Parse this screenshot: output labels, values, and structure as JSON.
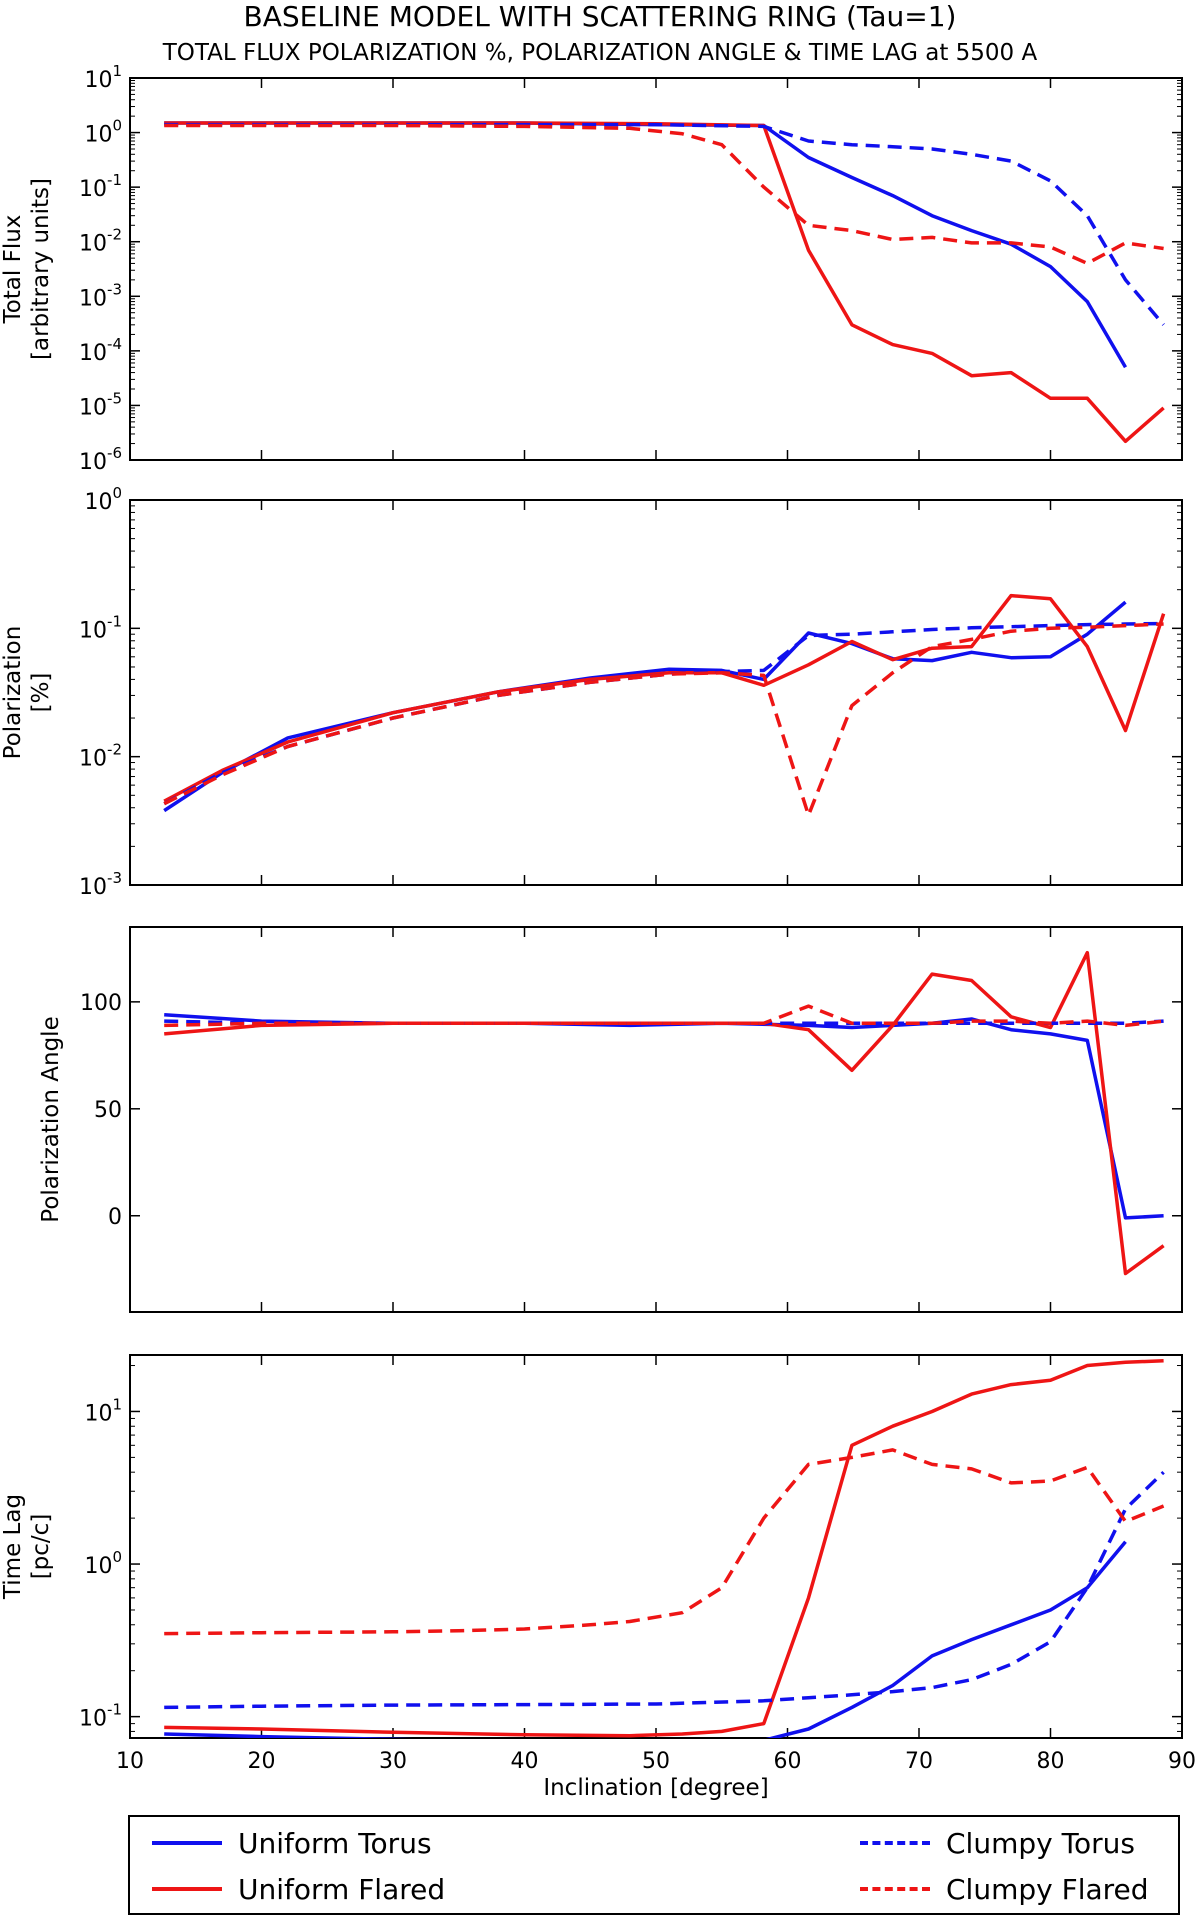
{
  "title": "BASELINE MODEL WITH SCATTERING RING (Tau=1)",
  "subtitle": "TOTAL FLUX POLARIZATION %, POLARIZATION ANGLE & TIME LAG at 5500 A",
  "colors": {
    "uniform_torus": "#1010ee",
    "uniform_flared": "#ee1515",
    "clumpy_torus": "#1010ee",
    "clumpy_flared": "#ee1515"
  },
  "legend": {
    "uniform_torus": "Uniform Torus",
    "uniform_flared": "Uniform Flared",
    "clumpy_torus": "Clumpy Torus",
    "clumpy_flared": "Clumpy Flared"
  },
  "chart_data": [
    {
      "type": "line",
      "scale": "log",
      "ylabel": [
        "Total Flux",
        "[arbitrary units]"
      ],
      "xlim": [
        10,
        90
      ],
      "ylim_exp": [
        -6,
        1
      ],
      "yticks": [
        {
          "base": "10",
          "exp": "-6"
        },
        {
          "base": "10",
          "exp": "-5"
        },
        {
          "base": "10",
          "exp": "-4"
        },
        {
          "base": "10",
          "exp": "-3"
        },
        {
          "base": "10",
          "exp": "-2"
        },
        {
          "base": "10",
          "exp": "-1"
        },
        {
          "base": "10",
          "exp": "0"
        },
        {
          "base": "10",
          "exp": "1"
        }
      ],
      "series": [
        {
          "name": "Uniform Torus",
          "style": "solid",
          "color": "#1010ee",
          "x": [
            12.6,
            20,
            30,
            40,
            50,
            58.2,
            61.6,
            64.9,
            68,
            71,
            74,
            77,
            80,
            82.8,
            85.7
          ],
          "y": [
            1.5,
            1.5,
            1.5,
            1.5,
            1.4,
            1.35,
            0.35,
            0.15,
            0.07,
            0.03,
            0.016,
            0.009,
            0.0035,
            0.0008,
            5e-05
          ]
        },
        {
          "name": "Uniform Flared",
          "style": "solid",
          "color": "#ee1515",
          "x": [
            12.6,
            20,
            30,
            40,
            50,
            58.2,
            61.6,
            64.9,
            68,
            71,
            74,
            77,
            80,
            82.8,
            85.7,
            88.6
          ],
          "y": [
            1.5,
            1.5,
            1.5,
            1.5,
            1.45,
            1.35,
            0.007,
            0.0003,
            0.00013,
            9e-05,
            3.5e-05,
            4e-05,
            1.35e-05,
            1.35e-05,
            2.2e-06,
            9e-06
          ]
        },
        {
          "name": "Clumpy Torus",
          "style": "dashed",
          "color": "#1010ee",
          "x": [
            12.6,
            20,
            30,
            40,
            50,
            58.2,
            61.6,
            64.9,
            68,
            71,
            74,
            77,
            80,
            82.8,
            85.7,
            88.6
          ],
          "y": [
            1.4,
            1.4,
            1.4,
            1.4,
            1.4,
            1.3,
            0.7,
            0.6,
            0.55,
            0.5,
            0.4,
            0.3,
            0.13,
            0.03,
            0.002,
            0.0003
          ]
        },
        {
          "name": "Clumpy Flared",
          "style": "dashed",
          "color": "#ee1515",
          "x": [
            12.6,
            20,
            30,
            40,
            48,
            52,
            55,
            58.2,
            61.6,
            64.9,
            68,
            71,
            74,
            77,
            80,
            82.8,
            85.7,
            88.6
          ],
          "y": [
            1.35,
            1.35,
            1.35,
            1.3,
            1.2,
            0.95,
            0.6,
            0.1,
            0.02,
            0.016,
            0.011,
            0.012,
            0.0095,
            0.0095,
            0.008,
            0.004,
            0.0095,
            0.0075
          ]
        }
      ]
    },
    {
      "type": "line",
      "scale": "log",
      "ylabel": [
        "Polarization",
        "[%]"
      ],
      "xlim": [
        10,
        90
      ],
      "ylim_exp": [
        -3,
        0
      ],
      "yticks": [
        {
          "base": "10",
          "exp": "-3"
        },
        {
          "base": "10",
          "exp": "-2"
        },
        {
          "base": "10",
          "exp": "-1"
        },
        {
          "base": "10",
          "exp": "0"
        }
      ],
      "series": [
        {
          "name": "Uniform Torus",
          "style": "solid",
          "color": "#1010ee",
          "x": [
            12.6,
            17,
            22,
            30,
            38,
            45,
            51,
            55,
            58.2,
            61.6,
            64.9,
            68,
            71,
            74,
            77,
            80,
            82.8,
            85.7
          ],
          "y": [
            0.0038,
            0.0075,
            0.014,
            0.022,
            0.032,
            0.041,
            0.048,
            0.047,
            0.04,
            0.092,
            0.076,
            0.058,
            0.056,
            0.065,
            0.059,
            0.06,
            0.09,
            0.16
          ]
        },
        {
          "name": "Uniform Flared",
          "style": "solid",
          "color": "#ee1515",
          "x": [
            12.6,
            17,
            22,
            30,
            38,
            45,
            51,
            55,
            58.2,
            61.6,
            64.9,
            68,
            71,
            74,
            77,
            80,
            82.8,
            85.7,
            88.6
          ],
          "y": [
            0.0045,
            0.0078,
            0.013,
            0.022,
            0.032,
            0.04,
            0.045,
            0.045,
            0.036,
            0.052,
            0.079,
            0.057,
            0.07,
            0.072,
            0.18,
            0.17,
            0.072,
            0.016,
            0.13
          ]
        },
        {
          "name": "Clumpy Torus",
          "style": "dashed",
          "color": "#1010ee",
          "x": [
            12.6,
            17,
            22,
            30,
            38,
            45,
            51,
            55,
            58.2,
            61.6,
            64.9,
            68,
            71,
            74,
            77,
            80,
            82.8,
            85.7,
            88.6
          ],
          "y": [
            0.0043,
            0.0075,
            0.012,
            0.02,
            0.03,
            0.038,
            0.044,
            0.046,
            0.047,
            0.088,
            0.09,
            0.094,
            0.098,
            0.101,
            0.103,
            0.105,
            0.107,
            0.108,
            0.109
          ]
        },
        {
          "name": "Clumpy Flared",
          "style": "dashed",
          "color": "#ee1515",
          "x": [
            12.6,
            17,
            22,
            30,
            38,
            45,
            51,
            55,
            58.2,
            61.6,
            64.9,
            68,
            71,
            74,
            77,
            80,
            82.8,
            85.7,
            88.6
          ],
          "y": [
            0.0043,
            0.0072,
            0.012,
            0.02,
            0.03,
            0.038,
            0.044,
            0.045,
            0.043,
            0.0035,
            0.025,
            0.045,
            0.072,
            0.082,
            0.095,
            0.1,
            0.102,
            0.105,
            0.108
          ]
        }
      ]
    },
    {
      "type": "line",
      "scale": "linear",
      "ylabel": [
        "Polarization Angle"
      ],
      "xlim": [
        10,
        90
      ],
      "ylim": [
        -45,
        135
      ],
      "yticks": [
        {
          "base": "0"
        },
        {
          "base": "50"
        },
        {
          "base": "100"
        }
      ],
      "yticks_values": [
        0,
        50,
        100
      ],
      "series": [
        {
          "name": "Uniform Torus",
          "style": "solid",
          "color": "#1010ee",
          "x": [
            12.6,
            20,
            30,
            40,
            48,
            55,
            61.6,
            64.9,
            68,
            71,
            74,
            77,
            80,
            82.8,
            85.7,
            88.6
          ],
          "y": [
            94,
            91,
            90,
            90,
            89,
            90,
            89,
            88,
            89,
            90,
            92,
            87,
            85,
            82,
            -1,
            0
          ]
        },
        {
          "name": "Uniform Flared",
          "style": "solid",
          "color": "#ee1515",
          "x": [
            12.6,
            20,
            30,
            40,
            50,
            58.2,
            61.6,
            64.9,
            68,
            71,
            74,
            77,
            80,
            82.8,
            85.7,
            88.6
          ],
          "y": [
            85,
            89,
            90,
            90,
            90,
            90,
            87,
            68,
            89,
            113,
            110,
            93,
            88,
            123,
            -27,
            -14
          ]
        },
        {
          "name": "Clumpy Torus",
          "style": "dashed",
          "color": "#1010ee",
          "x": [
            12.6,
            20,
            30,
            40,
            50,
            58.2,
            61.6,
            64.9,
            68,
            71,
            74,
            77,
            80,
            82.8,
            85.7,
            88.6
          ],
          "y": [
            91,
            90,
            90,
            90,
            90,
            90,
            90,
            90,
            90,
            90,
            90,
            90,
            90,
            90,
            90,
            91
          ]
        },
        {
          "name": "Clumpy Flared",
          "style": "dashed",
          "color": "#ee1515",
          "x": [
            12.6,
            20,
            30,
            40,
            50,
            58.2,
            61.6,
            64.9,
            68,
            71,
            74,
            77,
            80,
            82.8,
            85.7,
            88.6
          ],
          "y": [
            89,
            90,
            90,
            90,
            90,
            90,
            98,
            90,
            90,
            90,
            91,
            91,
            90,
            91,
            89,
            91
          ]
        }
      ]
    },
    {
      "type": "line",
      "scale": "log",
      "ylabel": [
        "Time Lag",
        "[pc/c]"
      ],
      "xlabel": "Inclination [degree]",
      "xlim": [
        10,
        90
      ],
      "ylim_exp": [
        -1.14,
        1.37
      ],
      "yticks": [
        {
          "base": "10",
          "exp": "-1"
        },
        {
          "base": "10",
          "exp": "0"
        },
        {
          "base": "10",
          "exp": "1"
        }
      ],
      "xticks": [
        "10",
        "20",
        "30",
        "40",
        "50",
        "60",
        "70",
        "80",
        "90"
      ],
      "series": [
        {
          "name": "Uniform Torus",
          "style": "solid",
          "color": "#1010ee",
          "x": [
            12.6,
            20,
            30,
            40,
            48,
            55,
            58.2,
            61.6,
            64.9,
            68,
            71,
            74,
            77,
            80,
            82.8,
            85.7
          ],
          "y": [
            0.077,
            0.074,
            0.071,
            0.068,
            0.067,
            0.067,
            0.07,
            0.083,
            0.115,
            0.16,
            0.25,
            0.32,
            0.4,
            0.5,
            0.7,
            1.4
          ]
        },
        {
          "name": "Uniform Flared",
          "style": "solid",
          "color": "#ee1515",
          "x": [
            12.6,
            20,
            30,
            40,
            48,
            52,
            55,
            58.2,
            61.6,
            64.9,
            68,
            71,
            74,
            77,
            80,
            82.8,
            85.7,
            88.6
          ],
          "y": [
            0.085,
            0.083,
            0.079,
            0.076,
            0.075,
            0.077,
            0.08,
            0.09,
            0.6,
            6.0,
            8.0,
            10.0,
            13.0,
            15.0,
            16.0,
            20.0,
            21.0,
            21.5
          ]
        },
        {
          "name": "Clumpy Torus",
          "style": "dashed",
          "color": "#1010ee",
          "x": [
            12.6,
            20,
            30,
            40,
            50,
            58.2,
            61.6,
            64.9,
            68,
            71,
            74,
            77,
            80,
            82.8,
            85.7,
            88.6
          ],
          "y": [
            0.115,
            0.117,
            0.119,
            0.12,
            0.121,
            0.127,
            0.133,
            0.139,
            0.146,
            0.155,
            0.175,
            0.22,
            0.31,
            0.7,
            2.3,
            4.0
          ]
        },
        {
          "name": "Clumpy Flared",
          "style": "dashed",
          "color": "#ee1515",
          "x": [
            12.6,
            20,
            30,
            35,
            40,
            45,
            48,
            52,
            55,
            58.2,
            61.6,
            64.9,
            68,
            71,
            74,
            77,
            80,
            82.8,
            85.7,
            88.6
          ],
          "y": [
            0.35,
            0.355,
            0.36,
            0.365,
            0.375,
            0.4,
            0.42,
            0.48,
            0.7,
            2.0,
            4.5,
            5.0,
            5.6,
            4.5,
            4.2,
            3.4,
            3.5,
            4.3,
            1.9,
            2.4
          ]
        }
      ]
    }
  ]
}
